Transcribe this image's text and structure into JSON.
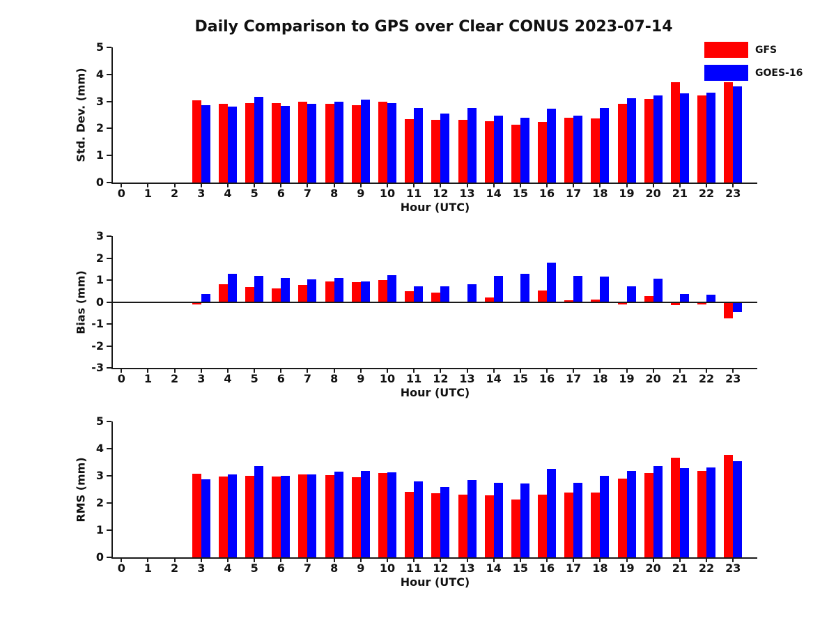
{
  "title": "Daily Comparison to GPS over Clear CONUS 2023-07-14",
  "colors": {
    "gfs": "#ff0000",
    "goes16": "#0000ff",
    "axis": "#1a1a1a"
  },
  "legend": {
    "items": [
      {
        "label": "GFS",
        "color": "#ff0000"
      },
      {
        "label": "GOES-16",
        "color": "#0000ff"
      }
    ]
  },
  "chart_data": [
    {
      "type": "bar",
      "title": "",
      "ylabel": "Std. Dev. (mm)",
      "xlabel": "Hour (UTC)",
      "ylim": [
        0,
        5
      ],
      "yticks": [
        0,
        1,
        2,
        3,
        4,
        5
      ],
      "grid": false,
      "legend_position": "upper right outside",
      "categories": [
        0,
        1,
        2,
        3,
        4,
        5,
        6,
        7,
        8,
        9,
        10,
        11,
        12,
        13,
        14,
        15,
        16,
        17,
        18,
        19,
        20,
        21,
        22,
        23
      ],
      "series": [
        {
          "name": "GFS",
          "color": "#ff0000",
          "values": [
            null,
            null,
            null,
            3.05,
            2.9,
            2.95,
            2.94,
            3.0,
            2.92,
            2.86,
            3.0,
            2.34,
            2.32,
            2.31,
            2.27,
            2.15,
            2.24,
            2.4,
            2.37,
            2.91,
            3.08,
            3.7,
            3.23,
            3.7
          ]
        },
        {
          "name": "GOES-16",
          "color": "#0000ff",
          "values": [
            null,
            null,
            null,
            2.87,
            2.8,
            3.17,
            2.84,
            2.92,
            3.0,
            3.06,
            2.94,
            2.77,
            2.54,
            2.75,
            2.48,
            2.4,
            2.74,
            2.47,
            2.77,
            3.11,
            3.21,
            3.3,
            3.32,
            3.55
          ]
        }
      ]
    },
    {
      "type": "bar",
      "title": "",
      "ylabel": "Bias (mm)",
      "xlabel": "Hour (UTC)",
      "ylim": [
        -3,
        3
      ],
      "yticks": [
        -3,
        -2,
        -1,
        0,
        1,
        2,
        3
      ],
      "grid": false,
      "zero_line": true,
      "categories": [
        0,
        1,
        2,
        3,
        4,
        5,
        6,
        7,
        8,
        9,
        10,
        11,
        12,
        13,
        14,
        15,
        16,
        17,
        18,
        19,
        20,
        21,
        22,
        23
      ],
      "series": [
        {
          "name": "GFS",
          "color": "#ff0000",
          "values": [
            null,
            null,
            null,
            -0.12,
            0.8,
            0.67,
            0.62,
            0.78,
            0.93,
            0.9,
            1.0,
            0.49,
            0.44,
            0.0,
            0.22,
            0.03,
            0.52,
            0.07,
            0.12,
            -0.1,
            0.28,
            -0.13,
            -0.1,
            -0.75
          ]
        },
        {
          "name": "GOES-16",
          "color": "#0000ff",
          "values": [
            null,
            null,
            null,
            0.35,
            1.3,
            1.18,
            1.08,
            1.02,
            1.08,
            0.95,
            1.22,
            0.72,
            0.72,
            0.81,
            1.2,
            1.29,
            1.78,
            1.2,
            1.15,
            0.7,
            1.07,
            0.37,
            0.33,
            -0.45
          ]
        }
      ]
    },
    {
      "type": "bar",
      "title": "",
      "ylabel": "RMS (mm)",
      "xlabel": "Hour (UTC)",
      "ylim": [
        0,
        5
      ],
      "yticks": [
        0,
        1,
        2,
        3,
        4,
        5
      ],
      "grid": false,
      "categories": [
        0,
        1,
        2,
        3,
        4,
        5,
        6,
        7,
        8,
        9,
        10,
        11,
        12,
        13,
        14,
        15,
        16,
        17,
        18,
        19,
        20,
        21,
        22,
        23
      ],
      "series": [
        {
          "name": "GFS",
          "color": "#ff0000",
          "values": [
            null,
            null,
            null,
            3.07,
            2.98,
            3.0,
            2.97,
            3.06,
            3.02,
            2.94,
            3.1,
            2.4,
            2.37,
            2.32,
            2.29,
            2.13,
            2.32,
            2.38,
            2.38,
            2.9,
            3.1,
            3.67,
            3.19,
            3.77
          ]
        },
        {
          "name": "GOES-16",
          "color": "#0000ff",
          "values": [
            null,
            null,
            null,
            2.88,
            3.06,
            3.36,
            3.0,
            3.06,
            3.16,
            3.18,
            3.13,
            2.79,
            2.6,
            2.85,
            2.74,
            2.72,
            3.25,
            2.74,
            3.0,
            3.17,
            3.36,
            3.28,
            3.31,
            3.53
          ]
        }
      ]
    }
  ]
}
